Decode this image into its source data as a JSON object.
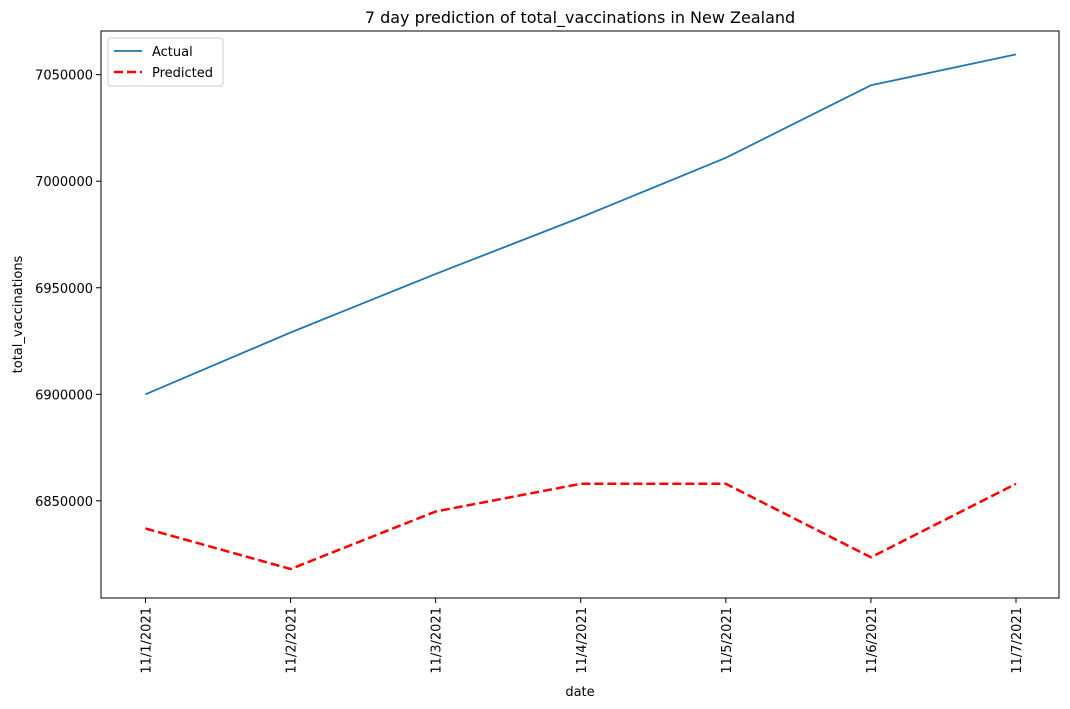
{
  "chart_data": {
    "type": "line",
    "title": "7 day prediction of total_vaccinations in New Zealand",
    "xlabel": "date",
    "ylabel": "total_vaccinations",
    "categories": [
      "11/1/2021",
      "11/2/2021",
      "11/3/2021",
      "11/4/2021",
      "11/5/2021",
      "11/6/2021",
      "11/7/2021"
    ],
    "series": [
      {
        "name": "Actual",
        "color": "#1f77b4",
        "style": "solid",
        "values": [
          6900000,
          6929000,
          6956500,
          6983000,
          7011000,
          7045000,
          7059500
        ]
      },
      {
        "name": "Predicted",
        "color": "#ff0000",
        "style": "dashed",
        "values": [
          6837000,
          6818000,
          6845000,
          6858000,
          6858000,
          6823500,
          6858000
        ]
      }
    ],
    "yticks": [
      6850000,
      6900000,
      6950000,
      7000000,
      7050000
    ],
    "ylim": [
      6804400,
      7070500
    ],
    "legend": "top-left",
    "grid": false
  }
}
